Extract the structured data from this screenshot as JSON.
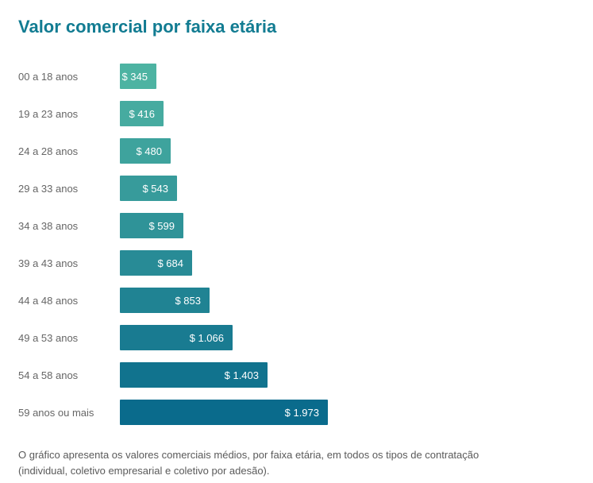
{
  "title": "Valor comercial por faixa etária",
  "colors": {
    "title": "#127C92",
    "label_text": "#666666",
    "bar_value_text": "#FFFFFF",
    "footnote_text": "#5A5A5A",
    "background": "#FFFFFF"
  },
  "chart_data": {
    "type": "bar",
    "orientation": "horizontal",
    "title": "Valor comercial por faixa etária",
    "categories": [
      "00 a 18 anos",
      "19 a 23 anos",
      "24 a 28 anos",
      "29 a 33 anos",
      "34 a 38 anos",
      "39 a 43 anos",
      "44 a 48 anos",
      "49 a 53 anos",
      "54 a 58 anos",
      "59 anos ou mais"
    ],
    "values": [
      345,
      416,
      480,
      543,
      599,
      684,
      853,
      1066,
      1403,
      1973
    ],
    "value_labels": [
      "$ 345",
      "$ 416",
      "$ 480",
      "$ 543",
      "$ 599",
      "$ 684",
      "$ 853",
      "$ 1.066",
      "$ 1.403",
      "$ 1.973"
    ],
    "bar_colors": [
      "#4DB3A2",
      "#46ABA0",
      "#3EA39D",
      "#379B9B",
      "#2F9398",
      "#288B96",
      "#208393",
      "#197B91",
      "#11738E",
      "#0A6B8C"
    ],
    "xlim": [
      0,
      1973
    ],
    "grid": false,
    "legend": false,
    "value_label_position": "inside-end"
  },
  "footnote": {
    "lines": [
      "O gráfico apresenta os valores comerciais médios, por faixa etária, em todos os tipos de contratação",
      "(individual, coletivo empresarial e coletivo por adesão)."
    ]
  }
}
